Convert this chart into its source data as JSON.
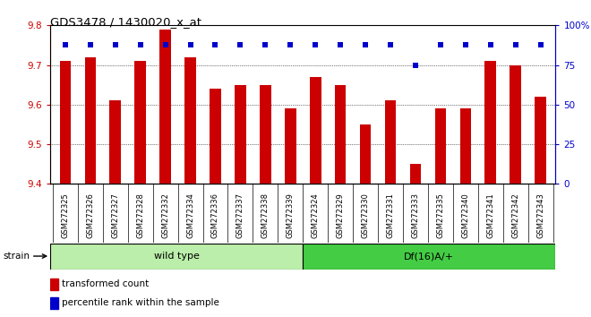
{
  "title": "GDS3478 / 1430020_x_at",
  "categories": [
    "GSM272325",
    "GSM272326",
    "GSM272327",
    "GSM272328",
    "GSM272332",
    "GSM272334",
    "GSM272336",
    "GSM272337",
    "GSM272338",
    "GSM272339",
    "GSM272324",
    "GSM272329",
    "GSM272330",
    "GSM272331",
    "GSM272333",
    "GSM272335",
    "GSM272340",
    "GSM272341",
    "GSM272342",
    "GSM272343"
  ],
  "bar_values": [
    9.71,
    9.72,
    9.61,
    9.71,
    9.79,
    9.72,
    9.64,
    9.65,
    9.65,
    9.59,
    9.67,
    9.65,
    9.55,
    9.61,
    9.45,
    9.59,
    9.59,
    9.71,
    9.7,
    9.62
  ],
  "percentile_values": [
    88,
    88,
    88,
    88,
    88,
    88,
    88,
    88,
    88,
    88,
    88,
    88,
    88,
    88,
    75,
    88,
    88,
    88,
    88,
    88
  ],
  "bar_color": "#cc0000",
  "percentile_color": "#0000cc",
  "ylim_left": [
    9.4,
    9.8
  ],
  "ylim_right": [
    0,
    100
  ],
  "yticks_left": [
    9.4,
    9.5,
    9.6,
    9.7,
    9.8
  ],
  "yticks_right": [
    0,
    25,
    50,
    75,
    100
  ],
  "ytick_labels_right": [
    "0",
    "25",
    "50",
    "75",
    "100%"
  ],
  "group1_label": "wild type",
  "group2_label": "Df(16)A/+",
  "group1_count": 10,
  "group2_count": 10,
  "strain_label": "strain",
  "legend_bar_label": "transformed count",
  "legend_dot_label": "percentile rank within the sample",
  "group1_color": "#bbeeaa",
  "group2_color": "#44cc44",
  "plot_bg_color": "#ffffff",
  "xtick_bg_color": "#dddddd"
}
